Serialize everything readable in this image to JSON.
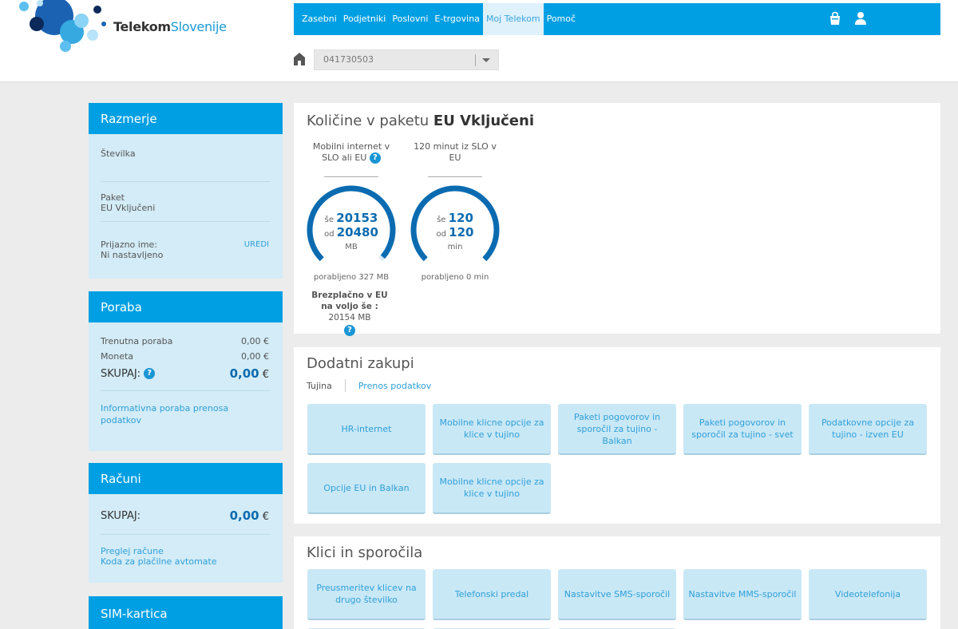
{
  "header": {
    "brand": {
      "part1": "Telekom",
      "part2": "Slovenije"
    },
    "nav": [
      "Zasebni",
      "Podjetniki",
      "Poslovni",
      "E-trgovina",
      "Moj Telekom",
      "Pomoč"
    ],
    "active_nav": "Moj Telekom",
    "number_select": {
      "value": "041730503"
    },
    "icons": [
      "home-icon",
      "cart-icon",
      "user-icon"
    ]
  },
  "sidebar": {
    "razmerje": {
      "title": "Razmerje",
      "stevilka_label": "Številka",
      "paket_label": "Paket",
      "paket_value": "EU Vključeni",
      "prijazno_label": "Prijazno ime:",
      "prijazno_value": "Ni nastavljeno",
      "uredi": "UREDI"
    },
    "poraba": {
      "title": "Poraba",
      "rows": [
        {
          "label": "Trenutna poraba",
          "value": "0,00 €"
        },
        {
          "label": "Moneta",
          "value": "0,00 €"
        }
      ],
      "skupaj_label": "SKUPAJ:",
      "skupaj_value": "0,00",
      "skupaj_currency": "€",
      "info_link": "Informativna poraba prenosa podatkov"
    },
    "racuni": {
      "title": "Računi",
      "skupaj_label": "SKUPAJ:",
      "skupaj_value": "0,00",
      "skupaj_currency": "€",
      "links": [
        "Preglej račune",
        "Koda za plačilne avtomate"
      ]
    },
    "sim": {
      "title": "SIM-kartica"
    }
  },
  "kolicine": {
    "title_prefix": "Količine v paketu ",
    "title_package": "EU Vključeni",
    "gauges": [
      {
        "label": "Mobilni internet v SLO ali EU",
        "se_prefix": "še",
        "remaining": "20153",
        "od_prefix": "od",
        "total": "20480",
        "unit": "MB",
        "used": "porabljeno 327 MB",
        "fraction_remaining": 0.984
      },
      {
        "label": "120 minut iz SLO v EU",
        "se_prefix": "še",
        "remaining": "120",
        "od_prefix": "od",
        "total": "120",
        "unit": "min",
        "used": "porabljeno 0 min",
        "fraction_remaining": 1.0
      }
    ],
    "eu_note_bold": "Brezplačno v EU na voljo še :",
    "eu_note_value": " 20154 MB"
  },
  "dodatni": {
    "title": "Dodatni zakupi",
    "tabs": [
      "Tujina",
      "Prenos podatkov"
    ],
    "tiles": [
      "HR-internet",
      "Mobilne klicne opcije za klice v tujino",
      "Paketi pogovorov in sporočil za tujino - Balkan",
      "Paketi pogovorov in sporočil za tujino - svet",
      "Podatkovne opcije za tujino - izven EU",
      "Opcije EU in Balkan",
      "Mobilne klicne opcije za klice v tujino"
    ]
  },
  "klici": {
    "title": "Klici in sporočila",
    "tiles": [
      "Preusmeritev klicev na drugo številko",
      "Telefonski predal",
      "Nastavitve SMS-sporočil",
      "Nastavitve MMS-sporočil",
      "Videotelefonija"
    ]
  },
  "colors": {
    "brand_blue": "#009fe3",
    "panel_blue": "#d3ecf7",
    "tile_blue": "#c9e8f6",
    "gauge_blue": "#0b6bb0"
  }
}
